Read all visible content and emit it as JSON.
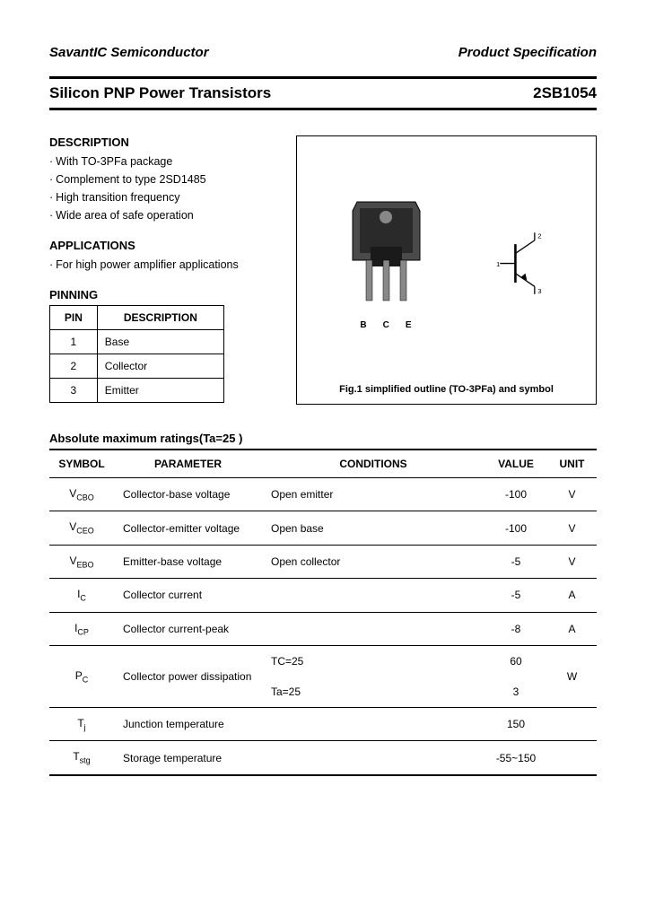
{
  "header": {
    "company": "SavantIC Semiconductor",
    "doc_type": "Product Specification"
  },
  "title": {
    "product_line": "Silicon PNP Power Transistors",
    "part_no": "2SB1054"
  },
  "description": {
    "heading": "DESCRIPTION",
    "items": [
      "With TO-3PFa package",
      "Complement to type 2SD1485",
      "High transition frequency",
      "Wide area of safe operation"
    ]
  },
  "applications": {
    "heading": "APPLICATIONS",
    "items": [
      "For high power amplifier applications"
    ]
  },
  "pinning": {
    "heading": "PINNING",
    "cols": [
      "PIN",
      "DESCRIPTION"
    ],
    "rows": [
      {
        "pin": "1",
        "desc": "Base"
      },
      {
        "pin": "2",
        "desc": "Collector"
      },
      {
        "pin": "3",
        "desc": "Emitter"
      }
    ]
  },
  "figure": {
    "caption": "Fig.1 simplified outline (TO-3PFa) and symbol",
    "pin_labels": [
      "B",
      "C",
      "E"
    ],
    "sym_pins": [
      "1",
      "2",
      "3"
    ]
  },
  "ratings": {
    "heading": "Absolute maximum ratings(Ta=25 )",
    "cols": [
      "SYMBOL",
      "PARAMETER",
      "CONDITIONS",
      "VALUE",
      "UNIT"
    ],
    "rows": [
      {
        "sym": "V",
        "sub": "CBO",
        "param": "Collector-base voltage",
        "cond": "Open emitter",
        "val": "-100",
        "unit": "V"
      },
      {
        "sym": "V",
        "sub": "CEO",
        "param": "Collector-emitter voltage",
        "cond": "Open base",
        "val": "-100",
        "unit": "V"
      },
      {
        "sym": "V",
        "sub": "EBO",
        "param": "Emitter-base voltage",
        "cond": "Open collector",
        "val": "-5",
        "unit": "V"
      },
      {
        "sym": "I",
        "sub": "C",
        "param": "Collector current",
        "cond": "",
        "val": "-5",
        "unit": "A"
      },
      {
        "sym": "I",
        "sub": "CP",
        "param": "Collector current-peak",
        "cond": "",
        "val": "-8",
        "unit": "A"
      }
    ],
    "power": {
      "sym": "P",
      "sub": "C",
      "param": "Collector power dissipation",
      "c1": "TC=25",
      "v1": "60",
      "c2": "Ta=25",
      "v2": "3",
      "unit": "W"
    },
    "tj": {
      "sym": "T",
      "sub": "j",
      "param": "Junction temperature",
      "cond": "",
      "val": "150",
      "unit": ""
    },
    "tstg": {
      "sym": "T",
      "sub": "stg",
      "param": "Storage temperature",
      "cond": "",
      "val": "-55~150",
      "unit": ""
    }
  },
  "colors": {
    "text": "#000000",
    "bg": "#ffffff",
    "border": "#000000"
  }
}
